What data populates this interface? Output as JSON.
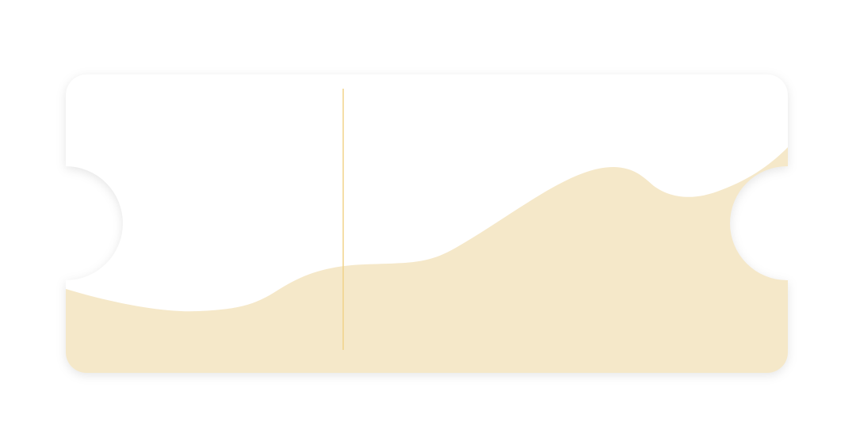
{
  "ticket": {
    "background_color": "#ffffff",
    "wave_color": "#f5e8c9",
    "divider_color": "#f2d38a",
    "page_background": "#ffffff"
  }
}
